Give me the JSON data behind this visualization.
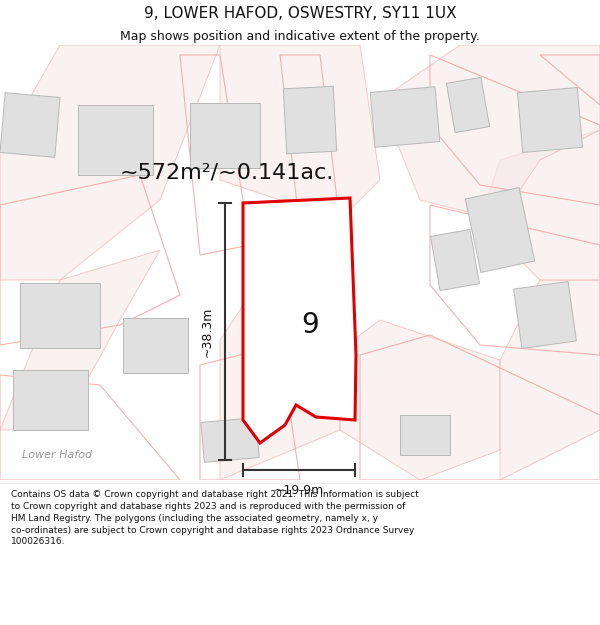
{
  "title": "9, LOWER HAFOD, OSWESTRY, SY11 1UX",
  "subtitle": "Map shows position and indicative extent of the property.",
  "area_text": "~572m²/~0.141ac.",
  "label_number": "9",
  "dim_height": "~38.3m",
  "dim_width": "~19.9m",
  "footer": "Contains OS data © Crown copyright and database right 2021. This information is subject\nto Crown copyright and database rights 2023 and is reproduced with the permission of\nHM Land Registry. The polygons (including the associated geometry, namely x, y\nco-ordinates) are subject to Crown copyright and database rights 2023 Ordnance Survey\n100026316.",
  "bg_color": "#ffffff",
  "map_bg": "#ffffff",
  "road_color": "#f2aaaa",
  "building_color": "#e0e0e0",
  "building_edge": "#b8b8b8",
  "red_plot_color": "#e00000",
  "dim_line_color": "#333333",
  "text_color": "#111111",
  "label_color": "#999999",
  "road_fill": "#f8e8e8"
}
